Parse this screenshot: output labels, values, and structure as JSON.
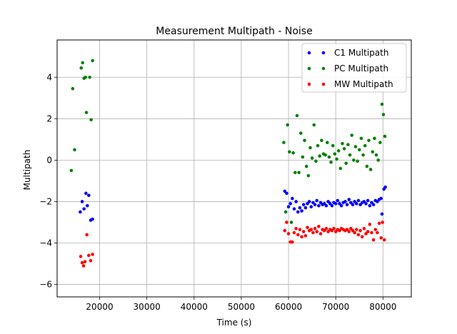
{
  "chart_data": {
    "type": "scatter",
    "title": "Measurement Multipath - Noise",
    "xlabel": "Time (s)",
    "ylabel": "Multipath",
    "xlim": [
      11000,
      86000
    ],
    "ylim": [
      -6.6,
      5.8
    ],
    "xticks": [
      20000,
      30000,
      40000,
      50000,
      60000,
      70000,
      80000
    ],
    "yticks": [
      -6,
      -4,
      -2,
      0,
      2,
      4
    ],
    "grid": true,
    "legend_position": "top-right",
    "series": [
      {
        "name": "C1 Multipath",
        "color": "#0000ff",
        "points": [
          [
            15900,
            -2.5
          ],
          [
            16300,
            -2.0
          ],
          [
            16700,
            -2.35
          ],
          [
            17100,
            -1.6
          ],
          [
            17400,
            -2.2
          ],
          [
            17700,
            -1.7
          ],
          [
            18100,
            -2.9
          ],
          [
            18500,
            -2.85
          ],
          [
            59200,
            -1.5
          ],
          [
            59600,
            -1.6
          ],
          [
            60000,
            -2.25
          ],
          [
            60400,
            -2.1
          ],
          [
            60800,
            -1.85
          ],
          [
            61200,
            -2.35
          ],
          [
            61600,
            -2.0
          ],
          [
            62000,
            -2.5
          ],
          [
            62400,
            -2.3
          ],
          [
            62800,
            -2.45
          ],
          [
            63200,
            -2.15
          ],
          [
            63600,
            -2.3
          ],
          [
            64000,
            -2.1
          ],
          [
            64400,
            -2.0
          ],
          [
            64800,
            -2.25
          ],
          [
            65200,
            -2.05
          ],
          [
            65600,
            -2.15
          ],
          [
            66000,
            -1.95
          ],
          [
            66400,
            -2.2
          ],
          [
            66800,
            -2.05
          ],
          [
            67200,
            -2.15
          ],
          [
            67600,
            -2.1
          ],
          [
            68000,
            -2.2
          ],
          [
            68400,
            -2.0
          ],
          [
            68800,
            -2.1
          ],
          [
            69200,
            -2.2
          ],
          [
            69600,
            -2.05
          ],
          [
            70000,
            -2.1
          ],
          [
            70400,
            -1.95
          ],
          [
            70800,
            -2.1
          ],
          [
            71200,
            -2.2
          ],
          [
            71600,
            -2.05
          ],
          [
            72000,
            -2.0
          ],
          [
            72400,
            -2.15
          ],
          [
            72800,
            -1.9
          ],
          [
            73200,
            -2.05
          ],
          [
            73600,
            -2.15
          ],
          [
            74000,
            -2.0
          ],
          [
            74400,
            -2.1
          ],
          [
            74800,
            -1.95
          ],
          [
            75200,
            -2.15
          ],
          [
            75600,
            -2.05
          ],
          [
            76000,
            -2.0
          ],
          [
            76400,
            -2.1
          ],
          [
            76800,
            -1.95
          ],
          [
            77200,
            -2.2
          ],
          [
            77600,
            -2.05
          ],
          [
            78000,
            -2.15
          ],
          [
            78400,
            -1.95
          ],
          [
            78800,
            -2.0
          ],
          [
            79200,
            -1.9
          ],
          [
            79600,
            -1.85
          ],
          [
            79800,
            -2.6
          ],
          [
            80200,
            -1.4
          ],
          [
            80500,
            -1.3
          ]
        ]
      },
      {
        "name": "PC Multipath",
        "color": "#008000",
        "points": [
          [
            14000,
            -0.5
          ],
          [
            14300,
            3.45
          ],
          [
            14700,
            0.5
          ],
          [
            16100,
            4.45
          ],
          [
            16400,
            4.7
          ],
          [
            16700,
            3.95
          ],
          [
            17000,
            4.0
          ],
          [
            17200,
            2.3
          ],
          [
            17900,
            4.0
          ],
          [
            18200,
            1.95
          ],
          [
            18500,
            4.8
          ],
          [
            59000,
            0.85
          ],
          [
            59400,
            -2.5
          ],
          [
            59800,
            1.7
          ],
          [
            60200,
            0.4
          ],
          [
            60600,
            -3.0
          ],
          [
            61000,
            0.35
          ],
          [
            61400,
            -0.6
          ],
          [
            61800,
            2.15
          ],
          [
            62200,
            -0.6
          ],
          [
            62600,
            1.3
          ],
          [
            63000,
            0.15
          ],
          [
            63400,
            0.95
          ],
          [
            63800,
            -0.3
          ],
          [
            64200,
            -0.75
          ],
          [
            64600,
            0.6
          ],
          [
            65000,
            0.1
          ],
          [
            65400,
            1.7
          ],
          [
            65800,
            -0.05
          ],
          [
            66200,
            0.7
          ],
          [
            66600,
            0.2
          ],
          [
            67000,
            0.95
          ],
          [
            67400,
            0.3
          ],
          [
            67800,
            0.25
          ],
          [
            68200,
            0.85
          ],
          [
            68600,
            0.15
          ],
          [
            69000,
            -0.1
          ],
          [
            69400,
            0.7
          ],
          [
            69800,
            0.3
          ],
          [
            70200,
            0.05
          ],
          [
            70600,
            0.45
          ],
          [
            71000,
            -0.4
          ],
          [
            71400,
            0.8
          ],
          [
            71800,
            0.55
          ],
          [
            72200,
            -0.15
          ],
          [
            72600,
            0.75
          ],
          [
            73000,
            0.25
          ],
          [
            73400,
            1.2
          ],
          [
            73800,
            0.0
          ],
          [
            74200,
            0.65
          ],
          [
            74600,
            -0.05
          ],
          [
            75000,
            0.5
          ],
          [
            75400,
            1.05
          ],
          [
            75800,
            0.25
          ],
          [
            76200,
            0.7
          ],
          [
            76600,
            -0.3
          ],
          [
            77000,
            0.95
          ],
          [
            77400,
            -0.45
          ],
          [
            77800,
            0.4
          ],
          [
            78200,
            1.05
          ],
          [
            78600,
            0.25
          ],
          [
            79000,
            0.0
          ],
          [
            79400,
            0.85
          ],
          [
            79800,
            2.7
          ],
          [
            80100,
            2.2
          ],
          [
            80400,
            1.15
          ]
        ]
      },
      {
        "name": "MW Multipath",
        "color": "#ff0000",
        "points": [
          [
            16000,
            -4.65
          ],
          [
            16300,
            -4.95
          ],
          [
            16600,
            -5.1
          ],
          [
            16900,
            -4.9
          ],
          [
            17300,
            -3.6
          ],
          [
            17700,
            -4.6
          ],
          [
            18100,
            -4.85
          ],
          [
            18500,
            -4.55
          ],
          [
            59200,
            -3.4
          ],
          [
            59600,
            -3.0
          ],
          [
            60000,
            -3.55
          ],
          [
            60400,
            -3.95
          ],
          [
            60800,
            -3.95
          ],
          [
            61200,
            -3.5
          ],
          [
            61600,
            -3.3
          ],
          [
            62000,
            -3.6
          ],
          [
            62400,
            -3.35
          ],
          [
            62800,
            -3.7
          ],
          [
            63200,
            -3.45
          ],
          [
            63600,
            -3.65
          ],
          [
            64000,
            -3.25
          ],
          [
            64400,
            -3.4
          ],
          [
            64800,
            -3.35
          ],
          [
            65200,
            -3.5
          ],
          [
            65600,
            -3.3
          ],
          [
            66000,
            -3.45
          ],
          [
            66400,
            -3.2
          ],
          [
            66800,
            -3.55
          ],
          [
            67200,
            -3.35
          ],
          [
            67600,
            -3.4
          ],
          [
            68000,
            -3.3
          ],
          [
            68400,
            -3.45
          ],
          [
            68800,
            -3.35
          ],
          [
            69200,
            -3.4
          ],
          [
            69600,
            -3.3
          ],
          [
            70000,
            -3.45
          ],
          [
            70400,
            -3.35
          ],
          [
            70800,
            -3.4
          ],
          [
            71200,
            -3.3
          ],
          [
            71600,
            -3.35
          ],
          [
            72000,
            -3.4
          ],
          [
            72400,
            -3.35
          ],
          [
            72800,
            -3.45
          ],
          [
            73200,
            -3.3
          ],
          [
            73600,
            -3.4
          ],
          [
            74000,
            -3.5
          ],
          [
            74400,
            -3.35
          ],
          [
            74800,
            -3.6
          ],
          [
            75200,
            -3.4
          ],
          [
            75600,
            -3.7
          ],
          [
            76000,
            -3.3
          ],
          [
            76400,
            -3.55
          ],
          [
            76800,
            -3.45
          ],
          [
            77200,
            -3.1
          ],
          [
            77600,
            -3.5
          ],
          [
            78000,
            -3.85
          ],
          [
            78400,
            -3.35
          ],
          [
            78800,
            -3.5
          ],
          [
            79200,
            -3.05
          ],
          [
            79600,
            -3.75
          ],
          [
            79900,
            -3.0
          ],
          [
            80300,
            -3.85
          ]
        ]
      }
    ]
  }
}
